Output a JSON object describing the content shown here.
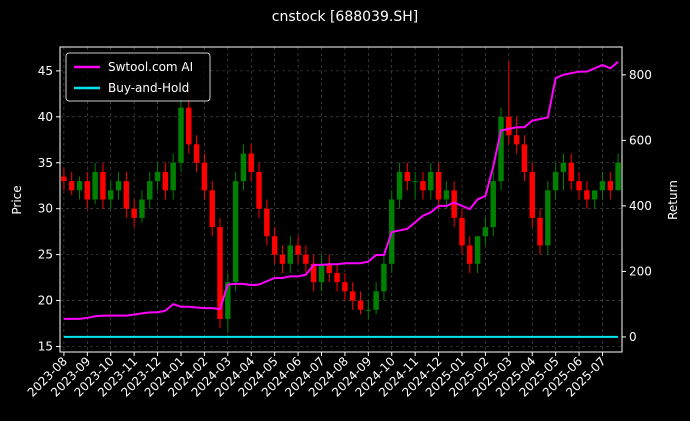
{
  "chart_data": {
    "type": "candlestick",
    "title": "cnstock [688039.SH]",
    "ylabel": "Price",
    "y2label": "Return",
    "categories": [
      "2023-08",
      null,
      null,
      "2023-09",
      null,
      null,
      "2023-10",
      null,
      null,
      "2023-11",
      null,
      null,
      "2023-12",
      null,
      null,
      "2024-01",
      null,
      null,
      "2024-02",
      null,
      null,
      "2024-03",
      null,
      null,
      "2024-04",
      null,
      null,
      "2024-05",
      null,
      null,
      "2024-06",
      null,
      null,
      "2024-07",
      null,
      null,
      "2024-08",
      null,
      null,
      "2024-09",
      null,
      null,
      "2024-10",
      null,
      null,
      "2024-11",
      null,
      null,
      "2024-12",
      null,
      null,
      "2025-01",
      null,
      null,
      "2025-02",
      null,
      null,
      "2025-03",
      null,
      null,
      "2025-04",
      null,
      null,
      "2025-05",
      null,
      null,
      "2025-06",
      null,
      null,
      "2025-07",
      null,
      null
    ],
    "open": [
      33.5,
      33,
      32,
      33,
      31,
      34,
      31,
      32,
      33,
      30,
      29,
      31,
      33,
      34,
      32,
      35,
      41,
      37,
      35,
      32,
      28,
      18,
      22,
      33,
      36,
      34,
      30,
      27,
      25,
      24,
      26,
      25,
      24,
      22,
      24,
      23,
      22,
      21,
      20,
      19,
      19,
      21,
      24,
      31,
      34,
      33,
      33,
      32,
      34,
      31,
      32,
      29,
      26,
      24,
      27,
      28,
      33,
      40,
      38,
      37,
      34,
      29,
      26,
      32,
      34,
      35,
      33,
      32,
      31,
      32,
      33,
      32
    ],
    "high": [
      34.5,
      34,
      33.5,
      34,
      35,
      35,
      33,
      34,
      34,
      31,
      32,
      34,
      35,
      35,
      36,
      42,
      43,
      38,
      36,
      33,
      29,
      23,
      34,
      37,
      37,
      35,
      31,
      28,
      26,
      27,
      27,
      26,
      25,
      25,
      25,
      24,
      23,
      22,
      21,
      20,
      22,
      25,
      32,
      35,
      35,
      34,
      34,
      35,
      35,
      33,
      33,
      30,
      27,
      27,
      29,
      34,
      41,
      46,
      40,
      38,
      35,
      30,
      33,
      35,
      36,
      36,
      34,
      33,
      32,
      34,
      34,
      36
    ],
    "low": [
      32,
      31.5,
      31,
      30,
      30.5,
      30,
      30,
      31,
      29,
      28,
      28.5,
      30,
      32,
      31,
      31,
      34,
      36,
      34,
      31,
      27,
      17,
      16.5,
      21,
      32,
      33,
      29,
      26,
      24,
      23,
      23,
      24,
      23,
      21,
      21,
      22,
      21,
      20,
      19,
      18.5,
      18,
      18.5,
      20,
      23,
      30,
      32,
      31,
      31,
      31,
      30,
      30,
      28,
      25,
      23,
      23,
      26,
      27,
      32,
      37,
      36,
      33,
      28,
      25,
      25,
      31,
      32,
      32,
      31,
      30,
      30,
      31,
      31,
      32
    ],
    "close": [
      33,
      32,
      33,
      31,
      34,
      31,
      32,
      33,
      30,
      29,
      31,
      33,
      34,
      32,
      35,
      41,
      37,
      35,
      32,
      28,
      18,
      22,
      33,
      36,
      34,
      30,
      27,
      25,
      24,
      26,
      25,
      24,
      22,
      24,
      23,
      22,
      21,
      20,
      19,
      19,
      21,
      24,
      31,
      34,
      33,
      33,
      32,
      34,
      31,
      32,
      29,
      26,
      24,
      27,
      28,
      33,
      40,
      38,
      37,
      34,
      29,
      26,
      32,
      34,
      35,
      33,
      32,
      31,
      32,
      33,
      32,
      35
    ],
    "up_color": "#008000",
    "down_color": "#ff0000",
    "ylim": [
      14.4,
      47.6
    ],
    "yticks": [
      15,
      20,
      25,
      30,
      35,
      40,
      45
    ],
    "y2lim": [
      -46,
      885
    ],
    "y2ticks": [
      0,
      200,
      400,
      600,
      800
    ],
    "grid": true,
    "legend": "upper left",
    "series": [
      {
        "name": "Swtool.com AI",
        "color": "#ff00ff",
        "axis": "y2",
        "values": [
          55,
          55,
          55,
          58,
          63,
          65,
          65,
          65,
          65,
          68,
          72,
          75,
          75,
          80,
          100,
          92,
          92,
          90,
          88,
          88,
          85,
          160,
          162,
          162,
          158,
          160,
          170,
          180,
          180,
          185,
          185,
          190,
          220,
          220,
          222,
          222,
          225,
          225,
          225,
          230,
          250,
          250,
          320,
          325,
          330,
          350,
          370,
          380,
          400,
          400,
          410,
          400,
          390,
          420,
          430,
          520,
          630,
          635,
          640,
          640,
          660,
          665,
          670,
          790,
          800,
          805,
          810,
          810,
          820,
          830,
          820,
          840
        ]
      },
      {
        "name": "Buy-and-Hold",
        "color": "#00e5ee",
        "axis": "y2",
        "values": [
          0,
          0,
          0,
          0,
          0,
          0,
          0,
          0,
          0,
          0,
          0,
          0,
          0,
          0,
          0,
          0,
          0,
          0,
          0,
          0,
          0,
          0,
          0,
          0,
          0,
          0,
          0,
          0,
          0,
          0,
          0,
          0,
          0,
          0,
          0,
          0,
          0,
          0,
          0,
          0,
          0,
          0,
          0,
          0,
          0,
          0,
          0,
          0,
          0,
          0,
          0,
          0,
          0,
          0,
          0,
          0,
          0,
          0,
          0,
          0,
          0,
          0,
          0,
          0,
          0,
          0,
          0,
          0,
          0,
          0,
          0,
          0
        ]
      }
    ]
  }
}
